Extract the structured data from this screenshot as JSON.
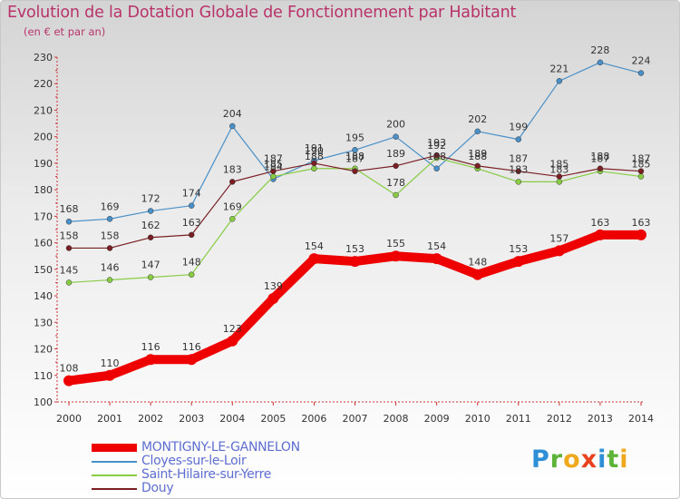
{
  "header": {
    "title": "Evolution de la Dotation Globale de Fonctionnement par Habitant",
    "subtitle": "(en € et par an)"
  },
  "logo": {
    "letters": [
      {
        "ch": "P",
        "color": "#2e8fd6"
      },
      {
        "ch": "r",
        "color": "#5cb338"
      },
      {
        "ch": "o",
        "color": "#f0a81c"
      },
      {
        "ch": "x",
        "color": "#e8421e"
      },
      {
        "ch": "i",
        "color": "#2e8fd6"
      },
      {
        "ch": "t",
        "color": "#5cb338"
      },
      {
        "ch": "i",
        "color": "#f0a81c"
      }
    ]
  },
  "chart_data": {
    "type": "line",
    "title": "Evolution de la Dotation Globale de Fonctionnement par Habitant",
    "subtitle": "(en € et par an)",
    "xlabel": "",
    "ylabel": "",
    "x": [
      "2000",
      "2001",
      "2002",
      "2003",
      "2004",
      "2005",
      "2006",
      "2007",
      "2008",
      "2009",
      "2010",
      "2011",
      "2012",
      "2013",
      "2014"
    ],
    "ylim": [
      100,
      230
    ],
    "yticks": [
      100,
      110,
      120,
      130,
      140,
      150,
      160,
      170,
      180,
      190,
      200,
      210,
      220,
      230
    ],
    "grid": false,
    "legend": "bottom-left",
    "series": [
      {
        "name": "MONTIGNY-LE-GANNELON",
        "color": "#ee0000",
        "values": [
          108,
          110,
          116,
          116,
          123,
          139,
          154,
          153,
          155,
          154,
          148,
          153,
          157,
          163,
          163
        ],
        "labels": [
          "108",
          "110",
          "116",
          "116",
          "123",
          "139",
          "154",
          "153",
          "155",
          "154",
          "148",
          "153",
          "157",
          "163",
          "163"
        ]
      },
      {
        "name": "Cloyes-sur-le-Loir",
        "color": "#4a90c8",
        "values": [
          168,
          169,
          172,
          174,
          204,
          184,
          191,
          195,
          200,
          188,
          202,
          199,
          221,
          228,
          224
        ],
        "labels": [
          "168",
          "169",
          "172",
          "174",
          "204",
          "184",
          "191",
          "195",
          "200",
          "188",
          "202",
          "199",
          "221",
          "228",
          "224"
        ]
      },
      {
        "name": "Saint-Hilaire-sur-Yerre",
        "color": "#88cc44",
        "values": [
          145,
          146,
          147,
          148,
          169,
          185,
          188,
          188,
          178,
          192,
          188,
          183,
          183,
          187,
          185
        ],
        "labels": [
          "145",
          "146",
          "147",
          "148",
          "169",
          "185",
          "188",
          "188",
          "178",
          "192",
          "188",
          "183",
          "183",
          "187",
          "185"
        ]
      },
      {
        "name": "Douy",
        "color": "#7a1f24",
        "values": [
          158,
          158,
          162,
          163,
          183,
          187,
          190,
          187,
          189,
          193,
          189,
          187,
          185,
          188,
          187
        ],
        "labels": [
          "158",
          "158",
          "162",
          "163",
          "183",
          "187",
          "190",
          "187",
          "189",
          "193",
          "189",
          "187",
          "185",
          "188",
          "187"
        ]
      }
    ]
  }
}
